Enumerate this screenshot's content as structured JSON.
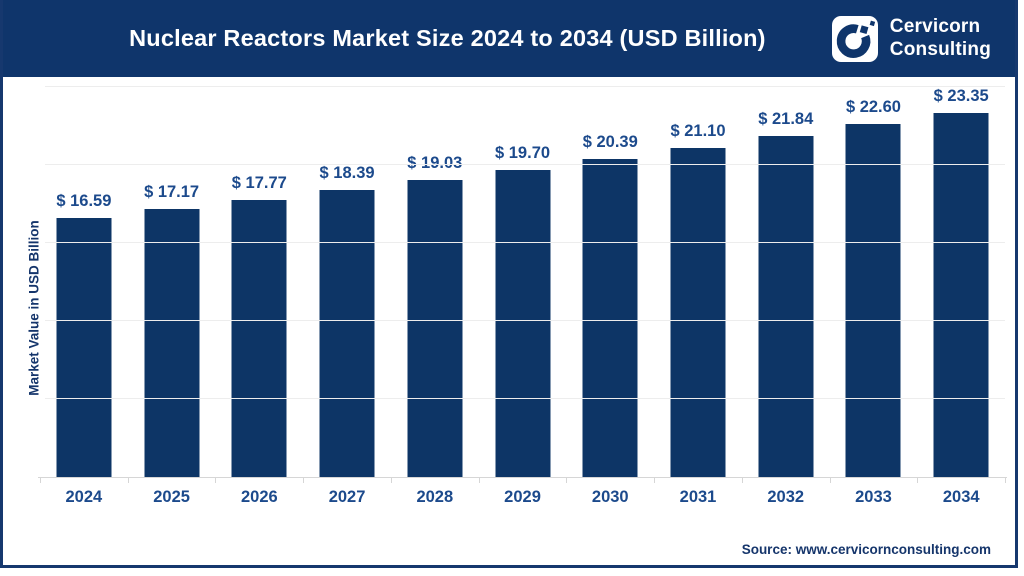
{
  "header": {
    "title": "Nuclear Reactors Market Size 2024 to 2034 (USD Billion)",
    "brand_line1": "Cervicorn",
    "brand_line2": "Consulting"
  },
  "chart_data": {
    "type": "bar",
    "title": "Nuclear Reactors Market Size 2024 to 2034 (USD Billion)",
    "categories": [
      "2024",
      "2025",
      "2026",
      "2027",
      "2028",
      "2029",
      "2030",
      "2031",
      "2032",
      "2033",
      "2034"
    ],
    "values": [
      16.59,
      17.17,
      17.77,
      18.39,
      19.03,
      19.7,
      20.39,
      21.1,
      21.84,
      22.6,
      23.35
    ],
    "data_label_prefix": "$ ",
    "xlabel": "",
    "ylabel": "Market Value in USD Billion",
    "ylim": [
      0,
      25
    ],
    "gridline_step": 5,
    "grid": "horizontal-only",
    "legend_position": "none",
    "bar_color": "#0d3566",
    "data_label_color": "#1c4a8c"
  },
  "footer": {
    "source": "Source: www.cervicornconsulting.com"
  },
  "colors": {
    "header_bg": "#0f356b",
    "frame_border": "#16386e",
    "title_text": "#ffffff",
    "axis_line": "#d6d6d6",
    "gridline": "#ededed",
    "ylabel_text": "#15356b",
    "source_text": "#15356b"
  }
}
